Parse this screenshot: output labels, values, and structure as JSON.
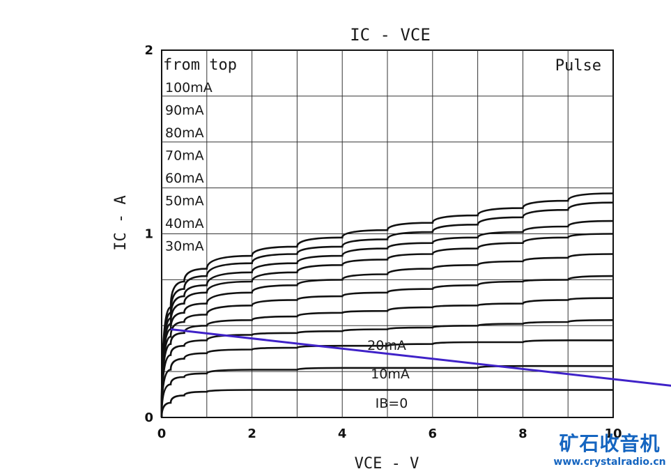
{
  "chart_data": {
    "type": "line",
    "title": "IC - VCE",
    "xlabel": "VCE - V",
    "ylabel": "IC - A",
    "xlim": [
      0,
      10
    ],
    "ylim": [
      0,
      2
    ],
    "x_ticks": [
      "0",
      "2",
      "4",
      "6",
      "8",
      "10"
    ],
    "y_ticks": [
      "0",
      "1",
      "2"
    ],
    "grid": true,
    "annotation_top_right": "Pulse",
    "legend_title": "from top",
    "legend_entries": [
      "100mA",
      "90mA",
      "80mA",
      "70mA",
      "60mA",
      "50mA",
      "40mA",
      "30mA"
    ],
    "inline_labels": [
      "20mA",
      "10mA",
      "IB=0"
    ],
    "series": [
      {
        "name": "100mA",
        "x": [
          0,
          0.2,
          0.5,
          1,
          2,
          3,
          4,
          5,
          6,
          7,
          8,
          9,
          10
        ],
        "y": [
          0,
          0.6,
          0.74,
          0.81,
          0.88,
          0.93,
          0.98,
          1.02,
          1.06,
          1.1,
          1.14,
          1.18,
          1.22
        ]
      },
      {
        "name": "90mA",
        "x": [
          0,
          0.2,
          0.5,
          1,
          2,
          3,
          4,
          5,
          6,
          7,
          8,
          9,
          10
        ],
        "y": [
          0,
          0.57,
          0.7,
          0.77,
          0.84,
          0.89,
          0.93,
          0.97,
          1.01,
          1.05,
          1.09,
          1.13,
          1.17
        ]
      },
      {
        "name": "80mA",
        "x": [
          0,
          0.2,
          0.5,
          1,
          2,
          3,
          4,
          5,
          6,
          7,
          8,
          9,
          10
        ],
        "y": [
          0,
          0.54,
          0.66,
          0.72,
          0.79,
          0.84,
          0.88,
          0.92,
          0.95,
          0.98,
          1.01,
          1.04,
          1.07
        ]
      },
      {
        "name": "70mA",
        "x": [
          0,
          0.2,
          0.5,
          1,
          2,
          3,
          4,
          5,
          6,
          7,
          8,
          9,
          10
        ],
        "y": [
          0,
          0.51,
          0.62,
          0.68,
          0.74,
          0.79,
          0.83,
          0.86,
          0.89,
          0.92,
          0.95,
          0.98,
          1.0
        ]
      },
      {
        "name": "60mA",
        "x": [
          0,
          0.2,
          0.5,
          1,
          2,
          3,
          4,
          5,
          6,
          7,
          8,
          9,
          10
        ],
        "y": [
          0,
          0.48,
          0.57,
          0.62,
          0.68,
          0.72,
          0.75,
          0.78,
          0.81,
          0.83,
          0.85,
          0.87,
          0.89
        ]
      },
      {
        "name": "50mA",
        "x": [
          0,
          0.2,
          0.5,
          1,
          2,
          3,
          4,
          5,
          6,
          7,
          8,
          9,
          10
        ],
        "y": [
          0,
          0.44,
          0.52,
          0.56,
          0.61,
          0.64,
          0.66,
          0.68,
          0.7,
          0.72,
          0.74,
          0.75,
          0.77
        ]
      },
      {
        "name": "40mA",
        "x": [
          0,
          0.2,
          0.5,
          1,
          2,
          3,
          4,
          5,
          6,
          7,
          8,
          9,
          10
        ],
        "y": [
          0,
          0.4,
          0.46,
          0.5,
          0.53,
          0.55,
          0.57,
          0.58,
          0.6,
          0.61,
          0.62,
          0.64,
          0.65
        ]
      },
      {
        "name": "30mA",
        "x": [
          0,
          0.2,
          0.5,
          1,
          2,
          3,
          4,
          5,
          6,
          7,
          8,
          9,
          10
        ],
        "y": [
          0,
          0.34,
          0.39,
          0.42,
          0.45,
          0.46,
          0.47,
          0.48,
          0.49,
          0.5,
          0.51,
          0.52,
          0.53
        ]
      },
      {
        "name": "20mA",
        "x": [
          0,
          0.2,
          0.5,
          1,
          2,
          3,
          4,
          5,
          6,
          7,
          8,
          9,
          10
        ],
        "y": [
          0,
          0.26,
          0.32,
          0.35,
          0.37,
          0.38,
          0.39,
          0.39,
          0.4,
          0.41,
          0.41,
          0.42,
          0.42
        ]
      },
      {
        "name": "10mA",
        "x": [
          0,
          0.2,
          0.5,
          1,
          2,
          3,
          4,
          5,
          6,
          7,
          8,
          9,
          10
        ],
        "y": [
          0,
          0.18,
          0.22,
          0.24,
          0.26,
          0.26,
          0.27,
          0.27,
          0.27,
          0.27,
          0.28,
          0.28,
          0.28
        ]
      },
      {
        "name": "IB=0",
        "x": [
          0,
          0.2,
          0.5,
          1,
          2,
          3,
          4,
          5,
          6,
          7,
          8,
          9,
          10
        ],
        "y": [
          0,
          0.08,
          0.12,
          0.14,
          0.15,
          0.15,
          0.15,
          0.15,
          0.15,
          0.15,
          0.15,
          0.15,
          0.15
        ]
      }
    ],
    "load_line": {
      "x": [
        0.2,
        11.4
      ],
      "y": [
        0.48,
        0.17
      ],
      "color": "#3f22c8"
    }
  },
  "watermark": {
    "name": "矿石收音机",
    "url": "www.crystalradio.cn",
    "color": "#1565c0"
  }
}
